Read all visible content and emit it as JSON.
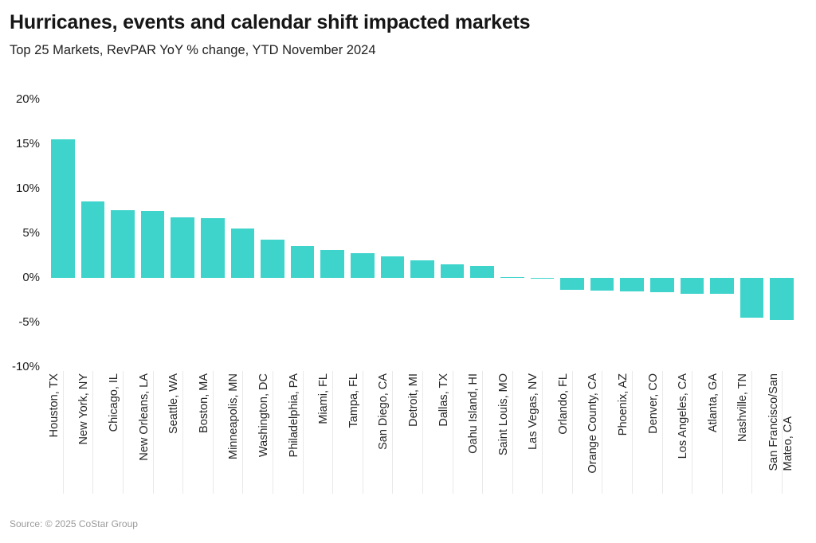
{
  "header": {
    "title": "Hurricanes, events and calendar shift impacted markets",
    "subtitle": "Top 25 Markets, RevPAR YoY % change, YTD November 2024"
  },
  "footer": {
    "source": "Source: © 2025 CoStar Group"
  },
  "chart_data": {
    "type": "bar",
    "title": "Hurricanes, events and calendar shift impacted markets",
    "subtitle": "Top 25 Markets, RevPAR YoY % change, YTD November 2024",
    "xlabel": "",
    "ylabel": "RevPAR YoY % change",
    "categories": [
      "Houston, TX",
      "New York, NY",
      "Chicago, IL",
      "New Orleans, LA",
      "Seattle, WA",
      "Boston, MA",
      "Minneapolis, MN",
      "Washington, DC",
      "Philadelphia, PA",
      "Miami, FL",
      "Tampa, FL",
      "San Diego, CA",
      "Detroit, MI",
      "Dallas, TX",
      "Oahu Island, HI",
      "Saint Louis, MO",
      "Las Vegas, NV",
      "Orlando, FL",
      "Orange County, CA",
      "Phoenix, AZ",
      "Denver, CO",
      "Los Angeles, CA",
      "Atlanta, GA",
      "Nashville, TN",
      "San Francisco/San\nMateo, CA"
    ],
    "values": [
      15.5,
      8.6,
      7.6,
      7.5,
      6.8,
      6.7,
      5.5,
      4.3,
      3.6,
      3.1,
      2.8,
      2.4,
      2.0,
      1.5,
      1.3,
      0.1,
      -0.1,
      -1.3,
      -1.4,
      -1.5,
      -1.6,
      -1.8,
      -1.8,
      -4.5,
      -4.7
    ],
    "y_ticks": [
      {
        "label": "20%",
        "value": 20
      },
      {
        "label": "15%",
        "value": 15
      },
      {
        "label": "10%",
        "value": 10
      },
      {
        "label": "5%",
        "value": 5
      },
      {
        "label": "0%",
        "value": 0
      },
      {
        "label": "-5%",
        "value": -5
      },
      {
        "label": "-10%",
        "value": -10
      }
    ],
    "ylim": [
      -10,
      20
    ],
    "grid": false,
    "legend": false,
    "bar_color": "#3ED3CB"
  }
}
